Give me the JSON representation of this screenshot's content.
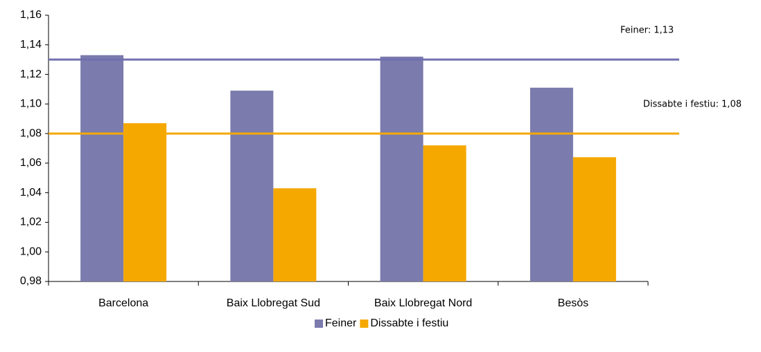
{
  "chart_data": {
    "type": "bar",
    "categories": [
      "Barcelona",
      "Baix Llobregat Sud",
      "Baix Llobregat Nord",
      "Besòs"
    ],
    "series": [
      {
        "name": "Feiner",
        "color": "#7b7bad",
        "values": [
          1.133,
          1.109,
          1.132,
          1.111
        ]
      },
      {
        "name": "Dissabte i festiu",
        "color": "#f5a800",
        "values": [
          1.087,
          1.043,
          1.072,
          1.064
        ]
      }
    ],
    "ylim": [
      0.98,
      1.16
    ],
    "yticks": [
      {
        "value": 0.98,
        "label": "0,98"
      },
      {
        "value": 1.0,
        "label": "1,00"
      },
      {
        "value": 1.02,
        "label": "1,02"
      },
      {
        "value": 1.04,
        "label": "1,04"
      },
      {
        "value": 1.06,
        "label": "1,06"
      },
      {
        "value": 1.08,
        "label": "1,08"
      },
      {
        "value": 1.1,
        "label": "1,10"
      },
      {
        "value": 1.12,
        "label": "1,12"
      },
      {
        "value": 1.14,
        "label": "1,14"
      },
      {
        "value": 1.16,
        "label": "1,16"
      }
    ],
    "reference_lines": [
      {
        "value": 1.13,
        "label": "Feiner: 1,13",
        "color": "#7070b0"
      },
      {
        "value": 1.08,
        "label": "Dissabte i festiu: 1,08",
        "color": "#f5a800"
      }
    ],
    "legend": "bottom"
  }
}
